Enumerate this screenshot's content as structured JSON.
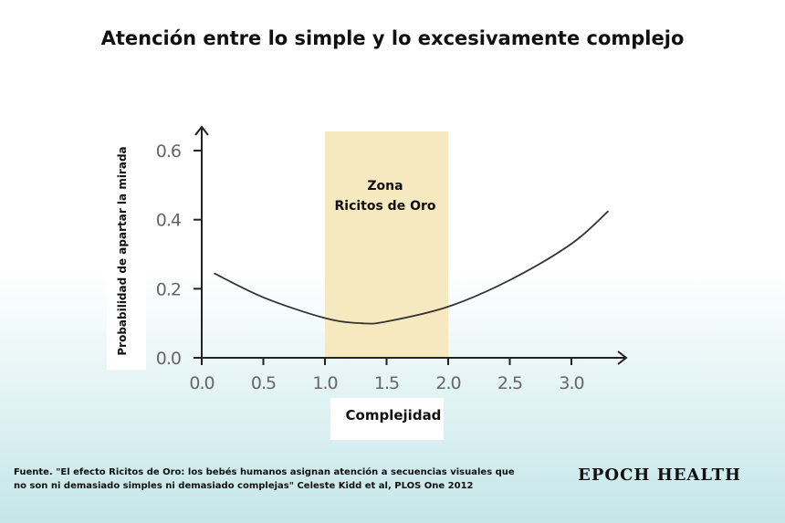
{
  "title": "Atención entre lo simple y lo excesivamente complejo",
  "source": "Fuente. \"El efecto Ricitos de Oro: los bebés humanos asignan atención a secuencias visuales que no son ni demasiado simples ni demasiado complejas\" Celeste Kidd et al, PLOS One 2012",
  "brand": "EPOCH HEALTH",
  "colors": {
    "zone": "#f6e8bf",
    "curve": "#333333",
    "axis": "#222222"
  },
  "chart_data": {
    "type": "line",
    "title": "Atención entre lo simple y lo excesivamente complejo",
    "xlabel": "Complejidad",
    "ylabel": "Probabilidad de apartar la mirada",
    "xlim": [
      0,
      3.5
    ],
    "ylim": [
      0,
      0.65
    ],
    "x_ticks": [
      "0.0",
      "0.5",
      "1.0",
      "1.5",
      "2.0",
      "2.5",
      "3.0"
    ],
    "y_ticks": [
      "0.0",
      "0.2",
      "0.4",
      "0.6"
    ],
    "grid": false,
    "zone": {
      "label_line1": "Zona",
      "label_line2": "Ricitos de Oro",
      "x_start": 1.0,
      "x_end": 2.0
    },
    "x": [
      0.1,
      0.5,
      1.0,
      1.3,
      1.5,
      2.0,
      2.5,
      3.0,
      3.3
    ],
    "y": [
      0.245,
      0.175,
      0.115,
      0.1,
      0.105,
      0.148,
      0.225,
      0.33,
      0.425
    ]
  }
}
